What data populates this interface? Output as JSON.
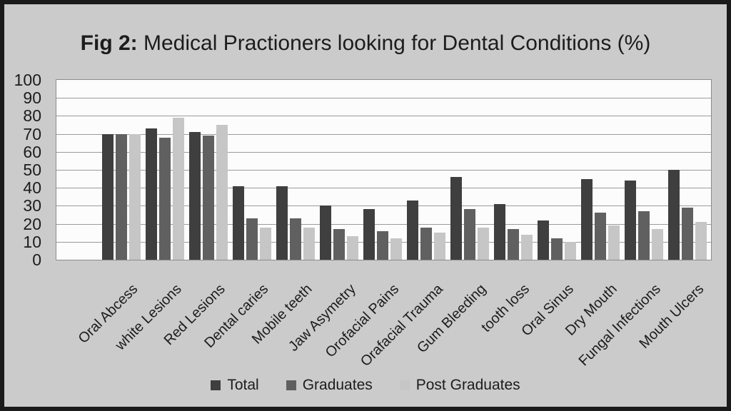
{
  "figure": {
    "title_prefix": "Fig 2:",
    "title_rest": " Medical Practioners looking for Dental Conditions (%)"
  },
  "chart_data": {
    "type": "bar",
    "title": "Fig 2: Medical Practioners looking for Dental Conditions (%)",
    "categories": [
      "Oral Abcess",
      "white Lesions",
      "Red Lesions",
      "Dental caries",
      "Mobile teeth",
      "Jaw Asymetry",
      "Orofacial Pains",
      "Orafacial Trauma",
      "Gum Bleeding",
      "tooth loss",
      "Oral Sinus",
      "Dry Mouth",
      "Fungal Infections",
      "Mouth Ulcers"
    ],
    "series": [
      {
        "name": "Total",
        "color": "#3f3f3f",
        "values": [
          70,
          73,
          71,
          41,
          41,
          30,
          28,
          33,
          46,
          31,
          22,
          45,
          44,
          50
        ]
      },
      {
        "name": "Graduates",
        "color": "#606060",
        "values": [
          70,
          68,
          69,
          23,
          23,
          17,
          16,
          18,
          28,
          17,
          12,
          26,
          27,
          29
        ]
      },
      {
        "name": "Post Graduates",
        "color": "#c6c6c6",
        "values": [
          70,
          79,
          75,
          18,
          18,
          13,
          12,
          15,
          18,
          14,
          10,
          19,
          17,
          21
        ]
      }
    ],
    "xlabel": "",
    "ylabel": "",
    "ylim": [
      0,
      100
    ],
    "yticks": [
      0,
      10,
      20,
      30,
      40,
      50,
      60,
      70,
      80,
      90,
      100
    ],
    "grid": true,
    "legend_position": "bottom"
  },
  "palette": {
    "background": "#cbcbcb",
    "frame_border": "#1b1b1b",
    "plot_background": "#fcfcfc",
    "gridline": "#9b9b9b",
    "plot_border": "#8c8c8c",
    "text": "#1c1c1c"
  }
}
